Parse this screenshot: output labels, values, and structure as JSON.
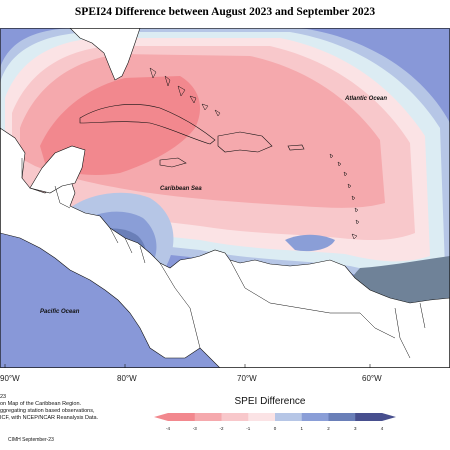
{
  "title": "SPEI24 Difference between August 2023 and September 2023",
  "ocean_labels": {
    "atlantic": "Atlantic Ocean",
    "caribbean": "Caribbean Sea",
    "pacific": "Pacific Ocean"
  },
  "longitude_labels": [
    "90°W",
    "80°W",
    "70°W",
    "60°W"
  ],
  "notes": {
    "line0": "23",
    "line1": "on Map of the Caribbean Region.",
    "line2": "ggregating station based observations,",
    "line3": "ICF, with NCEP/NCAR Reanalysis Data."
  },
  "credit": "CIMH September-23",
  "legend": {
    "title": "SPEI Difference",
    "ticks": [
      "-4",
      "-3",
      "-2",
      "-1",
      "0",
      "1",
      "2",
      "3",
      "4"
    ],
    "colors": [
      "#f2888e",
      "#f5a9ad",
      "#f8c8cb",
      "#fbe3e5",
      "#dcecf3",
      "#b6c6e6",
      "#8a9ed7",
      "#6a7fb8",
      "#474f8e"
    ]
  },
  "colors": {
    "land": "#ffffff",
    "ocean_positive": "#8898d8",
    "anomaly_strong_negative": "#f2888e",
    "anomaly_moderate_negative": "#f5a9ad",
    "anomaly_weak_negative": "#f8c8cb",
    "anomaly_slight_negative": "#fbe3e5",
    "south_america_positive": "#6f8298"
  }
}
